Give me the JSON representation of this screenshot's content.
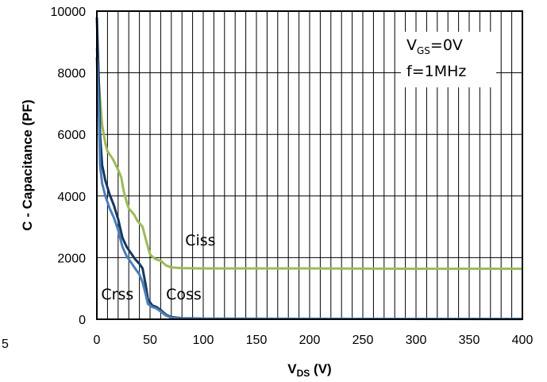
{
  "chart_data": {
    "type": "line",
    "title": "",
    "xlabel": "V",
    "xlabel_sub": "DS",
    "xlabel_unit": " (V)",
    "ylabel": "C - Capacitance (PF)",
    "xlim": [
      0,
      400
    ],
    "ylim": [
      0,
      10000
    ],
    "x_ticks": [
      0,
      50,
      100,
      150,
      200,
      250,
      300,
      350,
      400
    ],
    "y_ticks": [
      0,
      2000,
      4000,
      6000,
      8000,
      10000
    ],
    "x_ticklabels": [
      "0",
      "50",
      "100",
      "150",
      "200",
      "250",
      "300",
      "350",
      "400"
    ],
    "y_ticklabels": [
      "0",
      "2000",
      "4000",
      "6000",
      "8000",
      "10000"
    ],
    "x_minor_step": 10,
    "grid": true,
    "legend": "none",
    "annotation": {
      "vgs_prefix": "V",
      "vgs_sub": "GS",
      "vgs_value": "=0V",
      "freq": "f=1MHz"
    },
    "stray_text": "5",
    "series": [
      {
        "name": "Ciss",
        "color": "#9bbb59",
        "points": [
          [
            0,
            8800
          ],
          [
            2,
            7600
          ],
          [
            5,
            6300
          ],
          [
            8,
            5700
          ],
          [
            10,
            5450
          ],
          [
            15,
            5200
          ],
          [
            20,
            4850
          ],
          [
            23,
            4600
          ],
          [
            25,
            4200
          ],
          [
            28,
            3800
          ],
          [
            30,
            3600
          ],
          [
            35,
            3400
          ],
          [
            38,
            3200
          ],
          [
            43,
            3000
          ],
          [
            46,
            2600
          ],
          [
            50,
            2100
          ],
          [
            55,
            1950
          ],
          [
            60,
            1900
          ],
          [
            65,
            1750
          ],
          [
            70,
            1680
          ],
          [
            80,
            1660
          ],
          [
            100,
            1650
          ],
          [
            200,
            1650
          ],
          [
            300,
            1640
          ],
          [
            400,
            1640
          ]
        ]
      },
      {
        "name": "Coss",
        "color": "#17375e",
        "points": [
          [
            0,
            9800
          ],
          [
            2,
            7500
          ],
          [
            3,
            6000
          ],
          [
            5,
            5000
          ],
          [
            8,
            4500
          ],
          [
            12,
            4050
          ],
          [
            16,
            3700
          ],
          [
            20,
            3250
          ],
          [
            24,
            2650
          ],
          [
            28,
            2350
          ],
          [
            32,
            2150
          ],
          [
            36,
            1950
          ],
          [
            40,
            1800
          ],
          [
            43,
            1650
          ],
          [
            46,
            1100
          ],
          [
            48,
            650
          ],
          [
            52,
            450
          ],
          [
            56,
            400
          ],
          [
            60,
            300
          ],
          [
            65,
            150
          ],
          [
            70,
            70
          ],
          [
            80,
            30
          ],
          [
            100,
            20
          ],
          [
            200,
            15
          ],
          [
            400,
            10
          ]
        ]
      },
      {
        "name": "Crss",
        "color": "#4a7ebb",
        "points": [
          [
            0,
            8500
          ],
          [
            2,
            6500
          ],
          [
            3,
            5000
          ],
          [
            5,
            4400
          ],
          [
            8,
            4000
          ],
          [
            12,
            3600
          ],
          [
            16,
            3300
          ],
          [
            20,
            2900
          ],
          [
            24,
            2350
          ],
          [
            28,
            2050
          ],
          [
            32,
            1850
          ],
          [
            36,
            1650
          ],
          [
            40,
            1450
          ],
          [
            43,
            1200
          ],
          [
            46,
            800
          ],
          [
            48,
            500
          ],
          [
            52,
            400
          ],
          [
            56,
            350
          ],
          [
            60,
            250
          ],
          [
            65,
            120
          ],
          [
            70,
            50
          ],
          [
            80,
            20
          ],
          [
            100,
            15
          ],
          [
            400,
            10
          ]
        ]
      }
    ],
    "series_labels": [
      {
        "text": "Ciss",
        "x": 83,
        "y": 2400
      },
      {
        "text": "Crss",
        "x": 4,
        "y": 650
      },
      {
        "text": "Coss",
        "x": 65,
        "y": 650
      }
    ]
  }
}
